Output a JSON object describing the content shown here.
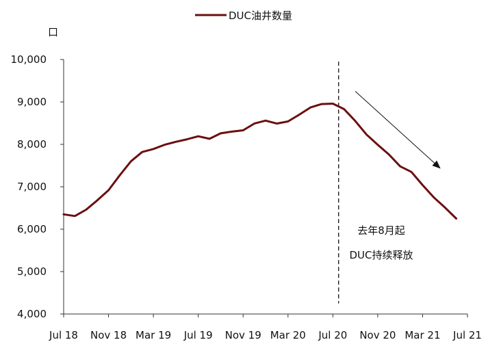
{
  "chart_data": {
    "type": "line",
    "ylabel": "口",
    "ylim": [
      4000,
      10000
    ],
    "yticks": [
      "4,000",
      "5,000",
      "6,000",
      "7,000",
      "8,000",
      "9,000",
      "10,000"
    ],
    "xtick_labels": [
      "Jul 18",
      "Nov 18",
      "Mar 19",
      "Jul 19",
      "Nov 19",
      "Mar 20",
      "Jul 20",
      "Nov 20",
      "Mar 21",
      "Jul 21"
    ],
    "legend_position": "top-center",
    "grid": false,
    "series": [
      {
        "name": "DUC油井数量",
        "color": "#6b0f0f",
        "x": [
          "2018-07",
          "2018-08",
          "2018-09",
          "2018-10",
          "2018-11",
          "2018-12",
          "2019-01",
          "2019-02",
          "2019-03",
          "2019-04",
          "2019-05",
          "2019-06",
          "2019-07",
          "2019-08",
          "2019-09",
          "2019-10",
          "2019-11",
          "2019-12",
          "2020-01",
          "2020-02",
          "2020-03",
          "2020-04",
          "2020-05",
          "2020-06",
          "2020-07",
          "2020-08",
          "2020-09",
          "2020-10",
          "2020-11",
          "2020-12",
          "2021-01",
          "2021-02",
          "2021-03",
          "2021-04",
          "2021-05",
          "2021-06"
        ],
        "values": [
          6350,
          6310,
          6460,
          6680,
          6920,
          7270,
          7600,
          7820,
          7890,
          7990,
          8060,
          8120,
          8190,
          8130,
          8260,
          8300,
          8330,
          8490,
          8560,
          8490,
          8540,
          8700,
          8870,
          8950,
          8960,
          8830,
          8550,
          8230,
          7990,
          7760,
          7480,
          7350,
          7040,
          6750,
          6510,
          6250
        ]
      }
    ],
    "annotations": [
      {
        "text": "去年8月起"
      },
      {
        "text": "DUC持续释放"
      }
    ],
    "vline_at": "2020-08",
    "trend_arrow": {
      "from": "2020-09",
      "to": "2021-05"
    }
  }
}
